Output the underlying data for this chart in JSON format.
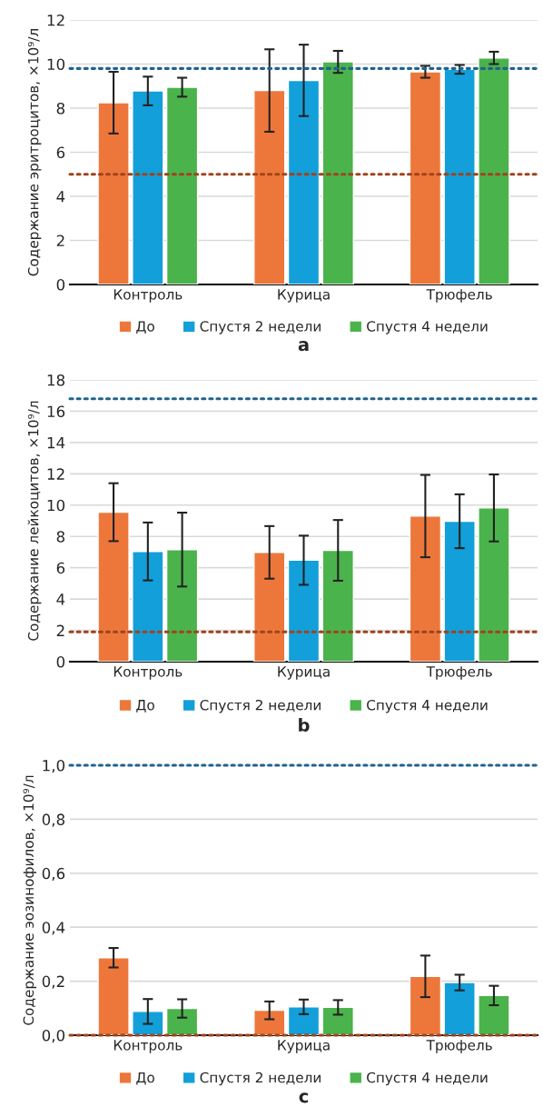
{
  "chart_data": [
    {
      "type": "bar",
      "ylabel": "Содержание эритроцитов, ×10⁹/л",
      "categories": [
        "Контроль",
        "Курица",
        "Трюфель"
      ],
      "series": [
        {
          "name": "До",
          "color": "#ed773b",
          "values": [
            8.25,
            8.8,
            9.65
          ],
          "errors": [
            1.4,
            1.87,
            0.27
          ]
        },
        {
          "name": "Спустя 2 недели",
          "color": "#139fd9",
          "values": [
            8.78,
            9.26,
            9.76
          ],
          "errors": [
            0.65,
            1.62,
            0.2
          ]
        },
        {
          "name": "Спустя 4 недели",
          "color": "#4bb34b",
          "values": [
            8.95,
            10.1,
            10.28
          ],
          "errors": [
            0.43,
            0.5,
            0.28
          ]
        }
      ],
      "ylim": [
        0,
        12
      ],
      "yticks": [
        0,
        2,
        4,
        6,
        8,
        10,
        12
      ],
      "ref_lines": [
        {
          "axis": "y",
          "value": 9.8,
          "color": "#1f6391",
          "line_style": "dotted"
        },
        {
          "axis": "y",
          "value": 5,
          "color": "#a0431c",
          "line_style": "dotted"
        }
      ],
      "grid": "y",
      "legend": "bottom",
      "annotations": [
        "a"
      ]
    },
    {
      "type": "bar",
      "ylabel": "Содержание лейкоцитов, ×10⁹/л",
      "categories": [
        "Контроль",
        "Курица",
        "Трюфель"
      ],
      "series": [
        {
          "name": "До",
          "color": "#ed773b",
          "values": [
            9.55,
            6.98,
            9.3
          ],
          "errors": [
            1.85,
            1.68,
            2.63
          ]
        },
        {
          "name": "Спустя 2 недели",
          "color": "#139fd9",
          "values": [
            7.04,
            6.48,
            8.97
          ],
          "errors": [
            1.85,
            1.57,
            1.72
          ]
        },
        {
          "name": "Спустя 4 недели",
          "color": "#4bb34b",
          "values": [
            7.16,
            7.11,
            9.82
          ],
          "errors": [
            2.36,
            1.94,
            2.14
          ]
        }
      ],
      "ylim": [
        0,
        18
      ],
      "yticks": [
        0,
        2,
        4,
        6,
        8,
        10,
        12,
        14,
        16,
        18
      ],
      "ref_lines": [
        {
          "axis": "y",
          "value": 16.8,
          "color": "#1f6391",
          "line_style": "dotted"
        },
        {
          "axis": "y",
          "value": 1.9,
          "color": "#a0431c",
          "line_style": "dotted"
        }
      ],
      "grid": "y",
      "legend": "bottom",
      "annotations": [
        "b"
      ]
    },
    {
      "type": "bar",
      "ylabel": "Содержание эозинофилов, ×10⁹/л",
      "categories": [
        "Контроль",
        "Курица",
        "Трюфель"
      ],
      "series": [
        {
          "name": "До",
          "color": "#ed773b",
          "values": [
            0.287,
            0.092,
            0.218
          ],
          "errors": [
            0.036,
            0.033,
            0.077
          ]
        },
        {
          "name": "Спустя 2 недели",
          "color": "#139fd9",
          "values": [
            0.088,
            0.105,
            0.195
          ],
          "errors": [
            0.046,
            0.027,
            0.029
          ]
        },
        {
          "name": "Спустя 4 недели",
          "color": "#4bb34b",
          "values": [
            0.099,
            0.103,
            0.147
          ],
          "errors": [
            0.034,
            0.027,
            0.036
          ]
        }
      ],
      "ylim": [
        0,
        1.0
      ],
      "yticks": [
        {
          "value": 0,
          "label": "0,0"
        },
        {
          "value": 0.2,
          "label": "0,2"
        },
        {
          "value": 0.4,
          "label": "0,4"
        },
        {
          "value": 0.6,
          "label": "0,6"
        },
        {
          "value": 0.8,
          "label": "0,8"
        },
        {
          "value": 1.0,
          "label": "1,0"
        }
      ],
      "ref_lines": [
        {
          "axis": "y",
          "value": 1.0,
          "color": "#1f6391",
          "line_style": "dotted"
        },
        {
          "axis": "y",
          "value": 0,
          "color": "#a0431c",
          "line_style": "dotted"
        }
      ],
      "grid": "y",
      "legend": "bottom",
      "annotations": [
        "c"
      ]
    }
  ]
}
